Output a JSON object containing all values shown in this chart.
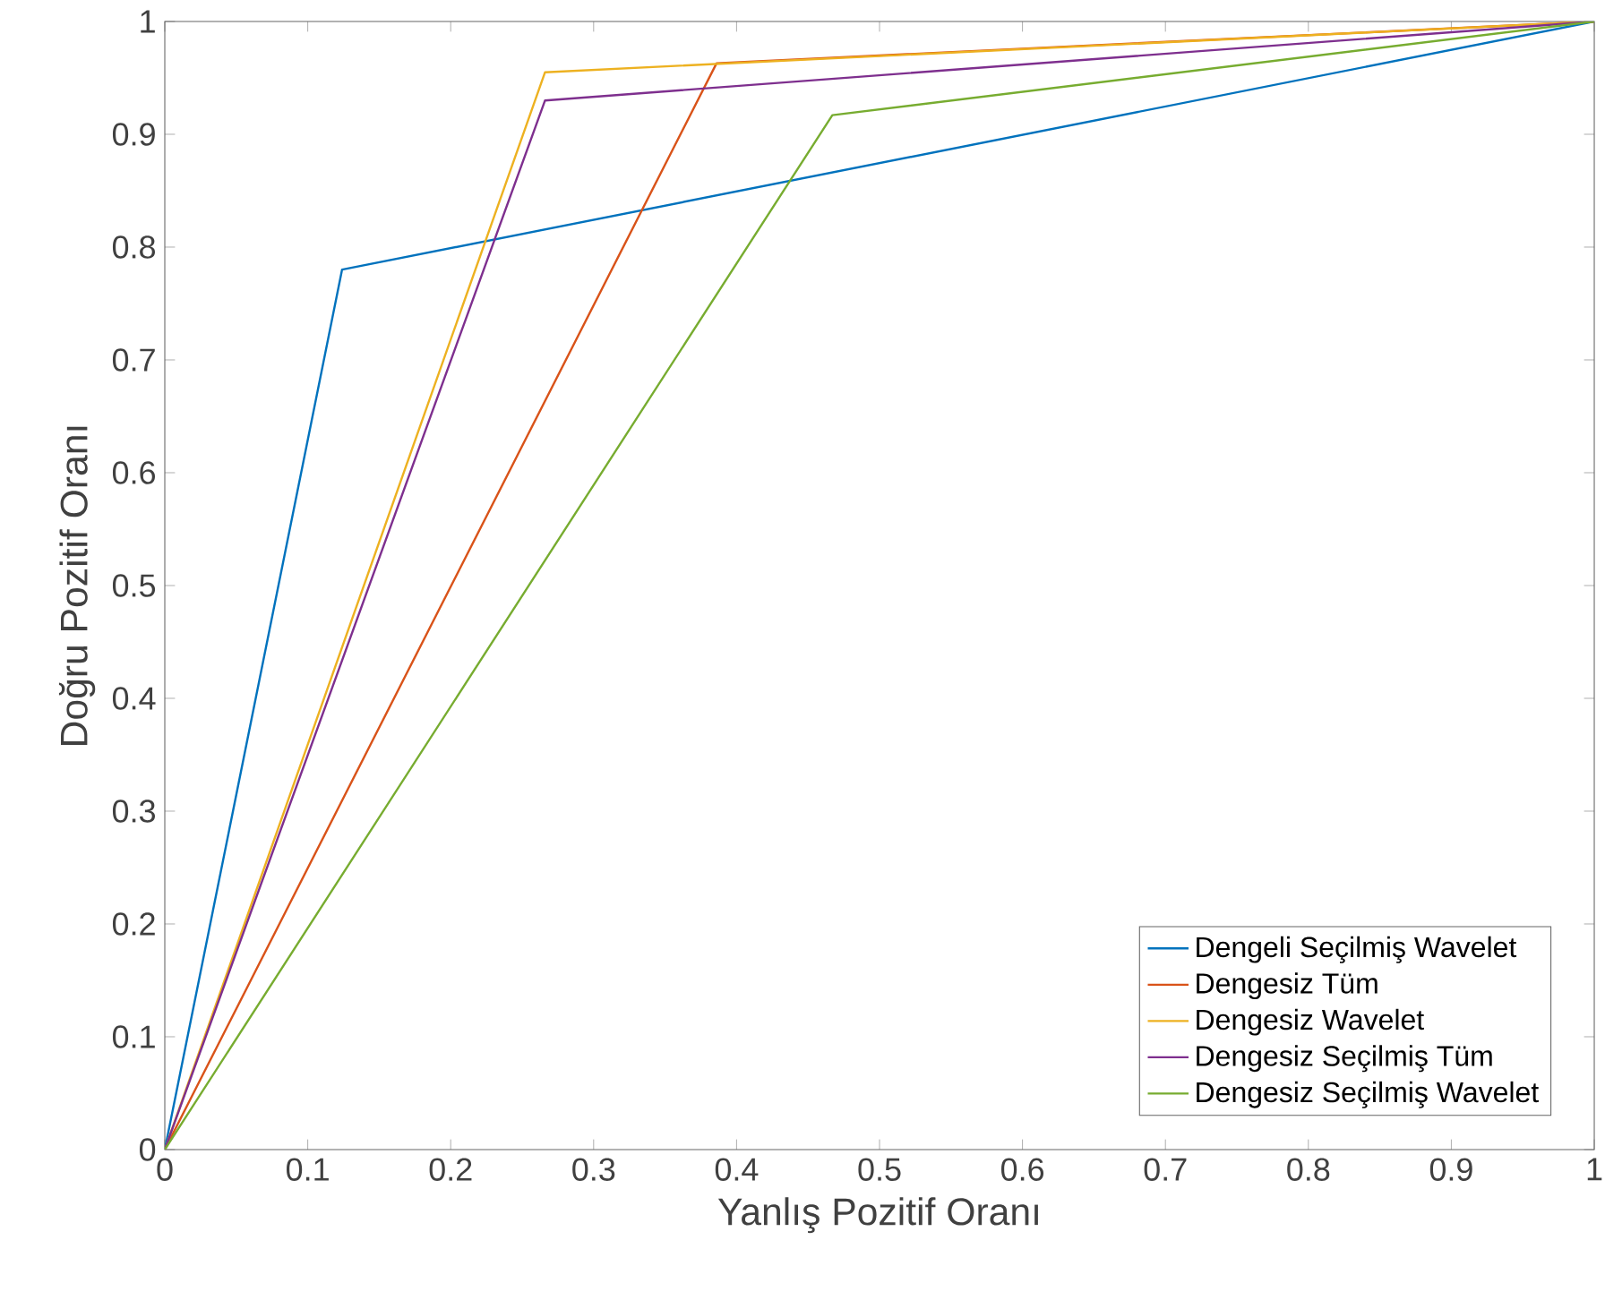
{
  "chart_data": {
    "type": "line",
    "xlabel": "Yanlış Pozitif Oranı",
    "ylabel": "Doğru Pozitif Oranı",
    "xlim": [
      0,
      1
    ],
    "ylim": [
      0,
      1
    ],
    "xticks": [
      0,
      0.1,
      0.2,
      0.3,
      0.4,
      0.5,
      0.6,
      0.7,
      0.8,
      0.9,
      1
    ],
    "yticks": [
      0,
      0.1,
      0.2,
      0.3,
      0.4,
      0.5,
      0.6,
      0.7,
      0.8,
      0.9,
      1
    ],
    "grid": false,
    "legend": "bottom right",
    "series": [
      {
        "name": "Dengeli Seçilmiş Wavelet",
        "color": "#0072bd",
        "x": [
          0,
          0.124,
          1
        ],
        "values": [
          0,
          0.78,
          1
        ]
      },
      {
        "name": "Dengesiz Tüm",
        "color": "#d95319",
        "x": [
          0,
          0.386,
          1
        ],
        "values": [
          0,
          0.963,
          1
        ]
      },
      {
        "name": "Dengesiz Wavelet",
        "color": "#edb120",
        "x": [
          0,
          0.266,
          1
        ],
        "values": [
          0,
          0.955,
          1
        ]
      },
      {
        "name": "Dengesiz Seçilmiş Tüm",
        "color": "#7e2f8e",
        "x": [
          0,
          0.266,
          1
        ],
        "values": [
          0,
          0.93,
          1
        ]
      },
      {
        "name": "Dengesiz Seçilmiş Wavelet",
        "color": "#77ac30",
        "x": [
          0,
          0.467,
          1
        ],
        "values": [
          0,
          0.917,
          1
        ]
      }
    ]
  }
}
